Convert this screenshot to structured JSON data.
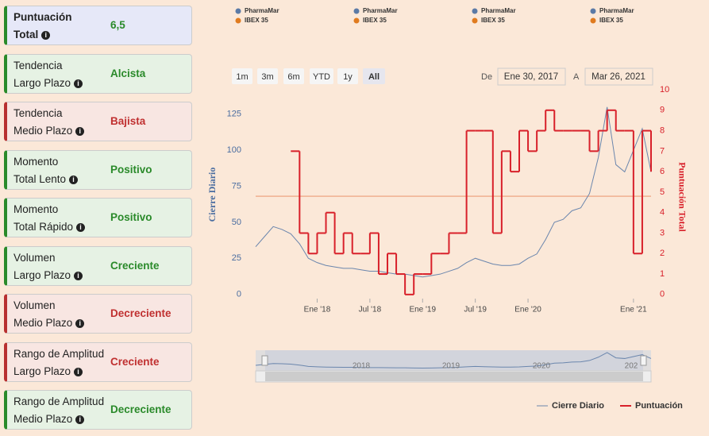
{
  "cards": [
    {
      "label": [
        "Puntuación",
        "Total"
      ],
      "value": "6,5",
      "tone": "neutral"
    },
    {
      "label": [
        "Tendencia",
        "Largo Plazo"
      ],
      "value": "Alcista",
      "tone": "good"
    },
    {
      "label": [
        "Tendencia",
        "Medio Plazo"
      ],
      "value": "Bajista",
      "tone": "bad"
    },
    {
      "label": [
        "Momento",
        "Total Lento"
      ],
      "value": "Positivo",
      "tone": "good"
    },
    {
      "label": [
        "Momento",
        "Total Rápido"
      ],
      "value": "Positivo",
      "tone": "good"
    },
    {
      "label": [
        "Volumen",
        "Largo Plazo"
      ],
      "value": "Creciente",
      "tone": "good"
    },
    {
      "label": [
        "Volumen",
        "Medio Plazo"
      ],
      "value": "Decreciente",
      "tone": "bad"
    },
    {
      "label": [
        "Rango de Amplitud",
        "Largo Plazo"
      ],
      "value": "Creciente",
      "tone": "bad"
    },
    {
      "label": [
        "Rango de Amplitud",
        "Medio Plazo"
      ],
      "value": "Decreciente",
      "tone": "good"
    }
  ],
  "top_legend": [
    {
      "name": "PharmaMar",
      "color": "#5b7aa6"
    },
    {
      "name": "IBEX 35",
      "color": "#e07b1f"
    }
  ],
  "range_buttons": [
    "1m",
    "3m",
    "6m",
    "YTD",
    "1y",
    "All"
  ],
  "date_range": {
    "from_label": "De",
    "from": "Ene 30, 2017",
    "to_label": "A",
    "to": "Mar 26, 2021"
  },
  "navigator": {
    "labels": [
      "2018",
      "2019",
      "2020",
      "202"
    ]
  },
  "chart_data": {
    "type": "line",
    "ylabel": "Cierre Diario",
    "y2label": "Puntuación Total",
    "x": [
      "2017-06",
      "2017-07",
      "2017-08",
      "2017-09",
      "2017-10",
      "2017-11",
      "2017-12",
      "2018-01",
      "2018-02",
      "2018-03",
      "2018-04",
      "2018-05",
      "2018-06",
      "2018-07",
      "2018-08",
      "2018-09",
      "2018-10",
      "2018-11",
      "2018-12",
      "2019-01",
      "2019-02",
      "2019-03",
      "2019-04",
      "2019-05",
      "2019-06",
      "2019-07",
      "2019-08",
      "2019-09",
      "2019-10",
      "2019-11",
      "2019-12",
      "2020-01",
      "2020-02",
      "2020-03",
      "2020-04",
      "2020-05",
      "2020-06",
      "2020-07",
      "2020-08",
      "2020-09",
      "2020-10",
      "2020-11",
      "2020-12",
      "2021-01",
      "2021-02",
      "2021-03"
    ],
    "xlim": [
      "2017-06",
      "2021-03"
    ],
    "xticks": [
      {
        "value": "2018-01",
        "label": "Ene '18"
      },
      {
        "value": "2018-07",
        "label": "Jul '18"
      },
      {
        "value": "2019-01",
        "label": "Ene '19"
      },
      {
        "value": "2019-07",
        "label": "Jul '19"
      },
      {
        "value": "2020-01",
        "label": "Ene '20"
      },
      {
        "value": "2021-01",
        "label": "Ene '21"
      }
    ],
    "ylim": [
      -3,
      142
    ],
    "yticks": [
      0,
      25,
      50,
      75,
      100,
      125
    ],
    "y2lim": [
      -0.2,
      10
    ],
    "y2ticks": [
      0,
      1,
      2,
      3,
      4,
      5,
      6,
      7,
      8,
      9,
      10
    ],
    "reference_line": {
      "value": 4.8,
      "axis": "y2",
      "color": "#f0b090"
    },
    "series": [
      {
        "name": "Cierre Diario",
        "color": "#6b86ad",
        "style": "line",
        "values": [
          33,
          40,
          47,
          45,
          42,
          35,
          25,
          22,
          20,
          19,
          18,
          18,
          17,
          16,
          16,
          15,
          14,
          14,
          13,
          12,
          13,
          14,
          16,
          18,
          22,
          25,
          23,
          21,
          20,
          20,
          21,
          25,
          28,
          38,
          50,
          52,
          58,
          60,
          70,
          95,
          130,
          90,
          85,
          100,
          115,
          85
        ]
      },
      {
        "name": "Puntuación",
        "color": "#d8202a",
        "style": "step",
        "axis": "y2",
        "values": [
          null,
          null,
          null,
          null,
          7,
          3,
          2,
          3,
          4,
          2,
          3,
          2,
          2,
          3,
          1,
          2,
          1,
          0,
          1,
          1,
          2,
          2,
          3,
          3,
          8,
          8,
          8,
          3,
          7,
          6,
          8,
          7,
          8,
          9,
          8,
          8,
          8,
          8,
          7,
          8,
          9,
          8,
          8,
          2,
          8,
          6
        ]
      }
    ]
  }
}
